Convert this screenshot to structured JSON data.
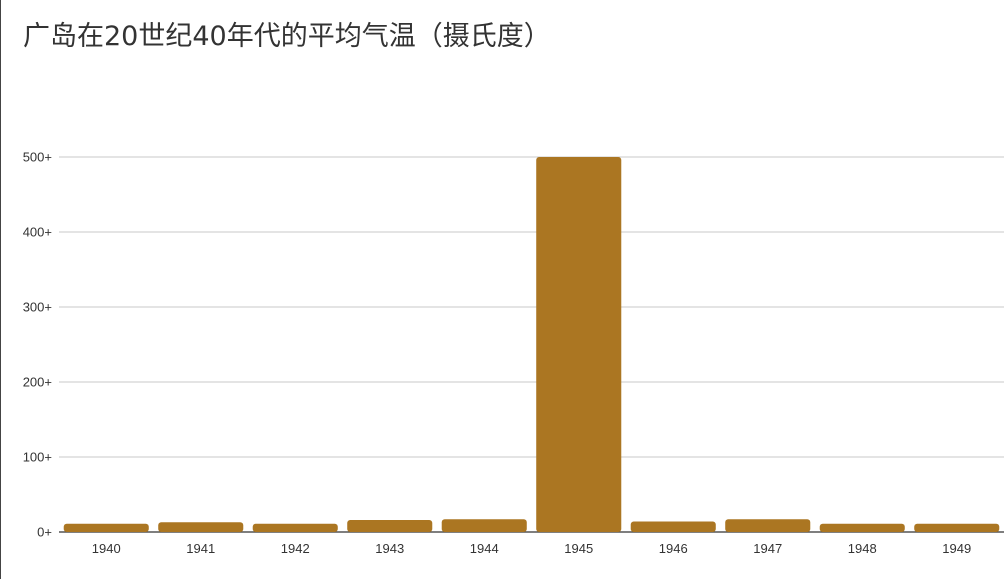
{
  "chart_data": {
    "type": "bar",
    "title": "广岛在20世纪40年代的平均气温（摄氏度）",
    "xlabel": "",
    "ylabel": "",
    "categories": [
      "1940",
      "1941",
      "1942",
      "1943",
      "1944",
      "1945",
      "1946",
      "1947",
      "1948",
      "1949"
    ],
    "values": [
      11,
      13,
      11,
      16,
      17,
      500,
      14,
      17,
      11,
      11
    ],
    "ylim": [
      0,
      500
    ],
    "y_ticks": [
      0,
      100,
      200,
      300,
      400,
      500
    ],
    "y_tick_labels": [
      "0+",
      "100+",
      "200+",
      "300+",
      "400+",
      "500+"
    ],
    "grid": true,
    "colors": {
      "bar": "#ab7622",
      "grid": "#c8c8c8",
      "axis": "#555555"
    }
  }
}
